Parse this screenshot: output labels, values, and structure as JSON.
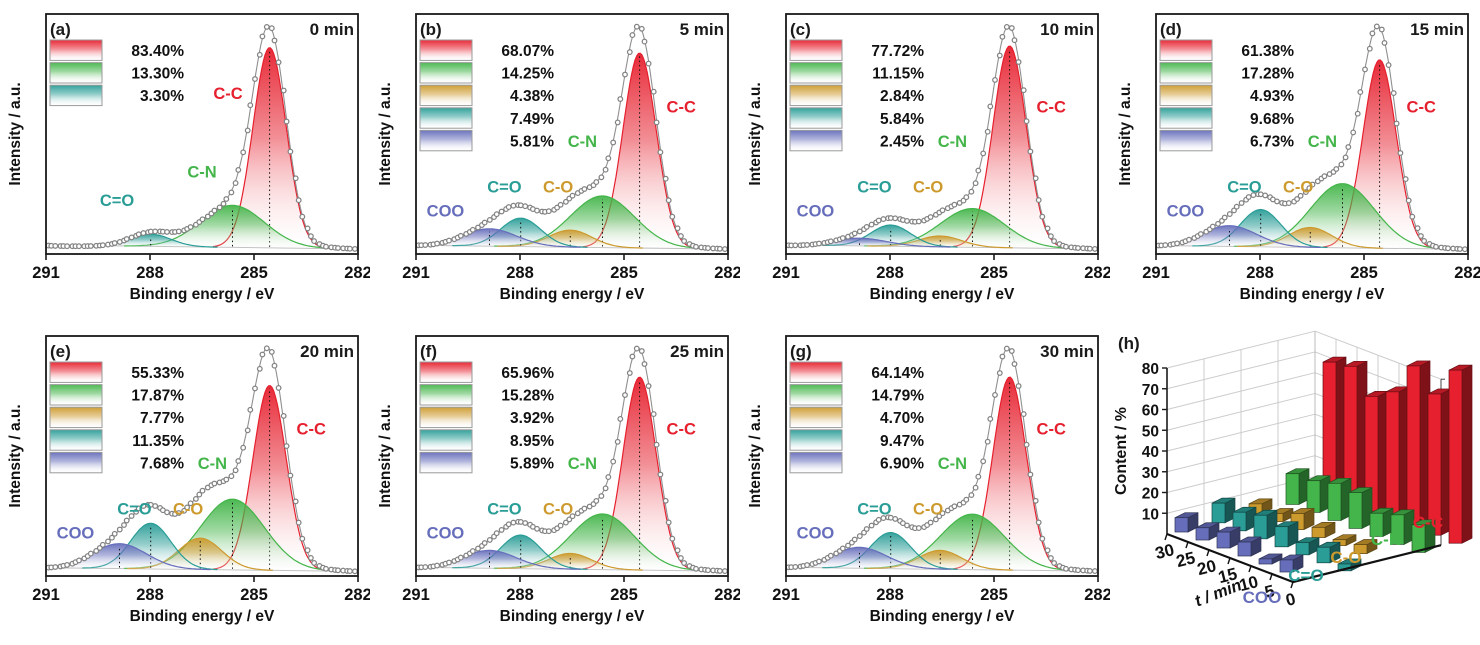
{
  "figure": {
    "xlabel": "Binding energy / eV",
    "ylabel": "Intensity / a.u.",
    "x_ticks": [
      "291",
      "288",
      "285",
      "282"
    ],
    "x_range": [
      291,
      282
    ]
  },
  "species": [
    {
      "key": "C-C",
      "color": "#e6202e",
      "center_eV": 284.55,
      "sigma_eV": 0.48
    },
    {
      "key": "C-N",
      "color": "#44b54a",
      "center_eV": 285.62,
      "sigma_eV": 0.92
    },
    {
      "key": "C-O",
      "color": "#cd9a2e",
      "center_eV": 286.55,
      "sigma_eV": 0.62
    },
    {
      "key": "C=O",
      "color": "#2a9d97",
      "center_eV": 287.98,
      "sigma_eV": 0.58
    },
    {
      "key": "COO",
      "color": "#666ebb",
      "center_eV": 288.88,
      "sigma_eV": 0.78
    }
  ],
  "chart_data": [
    {
      "type": "area",
      "panel": "a",
      "panel_label": "(a)",
      "time_label": "0 min",
      "xlabel": "Binding energy / eV",
      "ylabel": "Intensity / a.u.",
      "x_ticks": [
        "291",
        "288",
        "285",
        "282"
      ],
      "x_range": [
        291,
        282
      ],
      "components": [
        {
          "species": "C-C",
          "percent": 83.4,
          "percent_label": "83.40%"
        },
        {
          "species": "C-N",
          "percent": 13.3,
          "percent_label": "13.30%"
        },
        {
          "species": "C=O",
          "percent": 3.3,
          "percent_label": "3.30%"
        }
      ]
    },
    {
      "type": "area",
      "panel": "b",
      "panel_label": "(b)",
      "time_label": "5 min",
      "xlabel": "Binding energy / eV",
      "ylabel": "Intensity / a.u.",
      "x_ticks": [
        "291",
        "288",
        "285",
        "282"
      ],
      "x_range": [
        291,
        282
      ],
      "components": [
        {
          "species": "C-C",
          "percent": 68.07,
          "percent_label": "68.07%"
        },
        {
          "species": "C-N",
          "percent": 14.25,
          "percent_label": "14.25%"
        },
        {
          "species": "C-O",
          "percent": 4.38,
          "percent_label": "4.38%"
        },
        {
          "species": "C=O",
          "percent": 7.49,
          "percent_label": "7.49%"
        },
        {
          "species": "COO",
          "percent": 5.81,
          "percent_label": "5.81%"
        }
      ]
    },
    {
      "type": "area",
      "panel": "c",
      "panel_label": "(c)",
      "time_label": "10 min",
      "xlabel": "Binding energy / eV",
      "ylabel": "Intensity / a.u.",
      "x_ticks": [
        "291",
        "288",
        "285",
        "282"
      ],
      "x_range": [
        291,
        282
      ],
      "components": [
        {
          "species": "C-C",
          "percent": 77.72,
          "percent_label": "77.72%"
        },
        {
          "species": "C-N",
          "percent": 11.15,
          "percent_label": "11.15%"
        },
        {
          "species": "C-O",
          "percent": 2.84,
          "percent_label": "2.84%"
        },
        {
          "species": "C=O",
          "percent": 5.84,
          "percent_label": "5.84%"
        },
        {
          "species": "COO",
          "percent": 2.45,
          "percent_label": "2.45%"
        }
      ]
    },
    {
      "type": "area",
      "panel": "d",
      "panel_label": "(d)",
      "time_label": "15 min",
      "xlabel": "Binding energy / eV",
      "ylabel": "Intensity / a.u.",
      "x_ticks": [
        "291",
        "288",
        "285",
        "282"
      ],
      "x_range": [
        291,
        282
      ],
      "components": [
        {
          "species": "C-C",
          "percent": 61.38,
          "percent_label": "61.38%"
        },
        {
          "species": "C-N",
          "percent": 17.28,
          "percent_label": "17.28%"
        },
        {
          "species": "C-O",
          "percent": 4.93,
          "percent_label": "4.93%"
        },
        {
          "species": "C=O",
          "percent": 9.68,
          "percent_label": "9.68%"
        },
        {
          "species": "COO",
          "percent": 6.73,
          "percent_label": "6.73%"
        }
      ]
    },
    {
      "type": "area",
      "panel": "e",
      "panel_label": "(e)",
      "time_label": "20 min",
      "xlabel": "Binding energy / eV",
      "ylabel": "Intensity / a.u.",
      "x_ticks": [
        "291",
        "288",
        "285",
        "282"
      ],
      "x_range": [
        291,
        282
      ],
      "components": [
        {
          "species": "C-C",
          "percent": 55.33,
          "percent_label": "55.33%"
        },
        {
          "species": "C-N",
          "percent": 17.87,
          "percent_label": "17.87%"
        },
        {
          "species": "C-O",
          "percent": 7.77,
          "percent_label": "7.77%"
        },
        {
          "species": "C=O",
          "percent": 11.35,
          "percent_label": "11.35%"
        },
        {
          "species": "COO",
          "percent": 7.68,
          "percent_label": "7.68%"
        }
      ]
    },
    {
      "type": "area",
      "panel": "f",
      "panel_label": "(f)",
      "time_label": "25 min",
      "xlabel": "Binding energy / eV",
      "ylabel": "Intensity / a.u.",
      "x_ticks": [
        "291",
        "288",
        "285",
        "282"
      ],
      "x_range": [
        291,
        282
      ],
      "components": [
        {
          "species": "C-C",
          "percent": 65.96,
          "percent_label": "65.96%"
        },
        {
          "species": "C-N",
          "percent": 15.28,
          "percent_label": "15.28%"
        },
        {
          "species": "C-O",
          "percent": 3.92,
          "percent_label": "3.92%"
        },
        {
          "species": "C=O",
          "percent": 8.95,
          "percent_label": "8.95%"
        },
        {
          "species": "COO",
          "percent": 5.89,
          "percent_label": "5.89%"
        }
      ]
    },
    {
      "type": "area",
      "panel": "g",
      "panel_label": "(g)",
      "time_label": "30 min",
      "xlabel": "Binding energy / eV",
      "ylabel": "Intensity / a.u.",
      "x_ticks": [
        "291",
        "288",
        "285",
        "282"
      ],
      "x_range": [
        291,
        282
      ],
      "components": [
        {
          "species": "C-C",
          "percent": 64.14,
          "percent_label": "64.14%"
        },
        {
          "species": "C-N",
          "percent": 14.79,
          "percent_label": "14.79%"
        },
        {
          "species": "C-O",
          "percent": 4.7,
          "percent_label": "4.70%"
        },
        {
          "species": "C=O",
          "percent": 9.47,
          "percent_label": "9.47%"
        },
        {
          "species": "COO",
          "percent": 6.9,
          "percent_label": "6.90%"
        }
      ]
    },
    {
      "type": "bar3d",
      "panel": "h",
      "panel_label": "(h)",
      "xlabel": "t / min",
      "ylabel": "Content / %",
      "time_categories": [
        "30",
        "25",
        "20",
        "15",
        "10",
        "5",
        "0"
      ],
      "yticks": [
        10,
        20,
        30,
        40,
        50,
        60,
        70,
        80
      ],
      "ylim": [
        0,
        80
      ],
      "series": [
        {
          "name": "C-C",
          "values": [
            64.14,
            65.96,
            55.33,
            61.38,
            77.72,
            68.07,
            83.4
          ]
        },
        {
          "name": "C-N",
          "values": [
            14.79,
            15.28,
            17.87,
            17.28,
            11.15,
            14.25,
            13.3
          ]
        },
        {
          "name": "C-O",
          "values": [
            4.7,
            3.92,
            7.77,
            4.93,
            2.84,
            4.38,
            0
          ]
        },
        {
          "name": "C=O",
          "values": [
            9.47,
            8.95,
            11.35,
            9.68,
            5.84,
            7.49,
            3.3
          ]
        },
        {
          "name": "COO",
          "values": [
            6.9,
            5.89,
            7.68,
            6.73,
            2.45,
            5.81,
            0
          ]
        }
      ]
    }
  ]
}
